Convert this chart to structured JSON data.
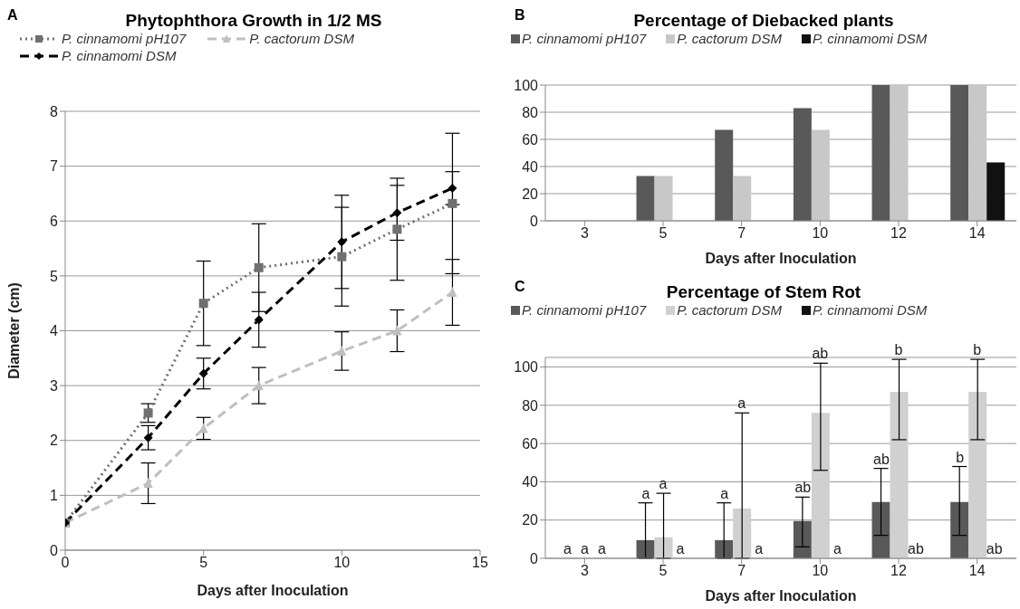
{
  "chart_data": [
    {
      "type": "line",
      "title": "Phytophthora Growth in 1/2 MS",
      "xlabel": "Days after Inoculation",
      "ylabel": "Diameter (cm)",
      "annotations": [
        "A"
      ],
      "x": [
        0,
        3,
        5,
        7,
        10,
        12,
        14
      ],
      "xlim": [
        0,
        15
      ],
      "xticks": [
        0,
        5,
        10,
        15
      ],
      "ylim": [
        0,
        8
      ],
      "yticks": [
        0,
        1,
        2,
        3,
        4,
        5,
        6,
        7,
        8
      ],
      "grid": "y",
      "legend": "top left",
      "series": [
        {
          "name": "P. cinnamomi pH107",
          "color": "#707070",
          "line_style": "dotted",
          "marker": "square",
          "values": [
            0.5,
            2.5,
            4.5,
            5.15,
            5.35,
            5.85,
            6.32
          ],
          "errors": [
            null,
            0.17,
            0.77,
            0.8,
            0.9,
            0.93,
            1.28
          ]
        },
        {
          "name": "P. cactorum DSM",
          "color": "#bfbfbf",
          "line_style": "dashed",
          "marker": "triangle",
          "values": [
            0.5,
            1.22,
            2.22,
            3.0,
            3.63,
            4.0,
            4.7
          ],
          "errors": [
            null,
            0.37,
            0.2,
            0.33,
            0.35,
            0.38,
            0.6
          ]
        },
        {
          "name": "P. cinnamomi DSM",
          "color": "#000000",
          "line_style": "dashed",
          "marker": "diamond",
          "values": [
            0.5,
            2.05,
            3.22,
            4.2,
            5.62,
            6.15,
            6.6
          ],
          "errors": [
            null,
            0.22,
            0.28,
            0.5,
            0.85,
            0.5,
            0.3
          ]
        }
      ]
    },
    {
      "type": "bar",
      "title": "Percentage of Diebacked plants",
      "xlabel": "Days after Inoculation",
      "annotations": [
        "B"
      ],
      "categories": [
        "3",
        "5",
        "7",
        "10",
        "12",
        "14"
      ],
      "ylim": [
        0,
        100
      ],
      "yticks": [
        0,
        20,
        40,
        60,
        80,
        100
      ],
      "grid": "y",
      "legend": "top",
      "series": [
        {
          "name": "P. cinnamomi pH107",
          "color": "#595959",
          "values": [
            0,
            33,
            67,
            83,
            100,
            100
          ]
        },
        {
          "name": "P. cactorum DSM",
          "color": "#c8c8c8",
          "values": [
            0,
            33,
            33,
            67,
            100,
            100
          ]
        },
        {
          "name": "P. cinnamomi DSM",
          "color": "#111111",
          "values": [
            0,
            0,
            0,
            0,
            0,
            43
          ]
        }
      ]
    },
    {
      "type": "bar",
      "title": "Percentage of Stem Rot",
      "xlabel": "Days after Inoculation",
      "annotations": [
        "C",
        {
          "text": "a",
          "x": "3",
          "y": 0
        },
        {
          "text": "a",
          "x": "3",
          "y": 0
        },
        {
          "text": "a",
          "x": "3",
          "y": 0
        },
        {
          "text": "a",
          "x": "5",
          "y": 29
        },
        {
          "text": "a",
          "x": "5",
          "y": 34
        },
        {
          "text": "a",
          "x": "5",
          "y": 0
        },
        {
          "text": "a",
          "x": "7",
          "y": 29
        },
        {
          "text": "a",
          "x": "7",
          "y": 76
        },
        {
          "text": "a",
          "x": "7",
          "y": 0
        },
        "ab",
        {
          "text": "ab",
          "x": "10",
          "y": 102
        },
        {
          "text": "a",
          "x": "10",
          "y": 0
        },
        "ab",
        {
          "text": "b",
          "x": "12",
          "y": 104
        },
        {
          "text": "ab",
          "x": "12",
          "y": 0
        },
        "b",
        {
          "text": "b",
          "x": "14",
          "y": 104
        },
        {
          "text": "ab",
          "x": "14",
          "y": 0
        }
      ],
      "categories": [
        "3",
        "5",
        "7",
        "10",
        "12",
        "14"
      ],
      "ylim": [
        0,
        105
      ],
      "yticks": [
        0,
        20,
        40,
        60,
        80,
        100
      ],
      "grid": "y",
      "legend": "top",
      "series": [
        {
          "name": "P. cinnamomi pH107",
          "color": "#595959",
          "values": [
            0,
            9.5,
            9.5,
            19.5,
            29.5,
            29.5
          ],
          "errors": [
            null,
            [
              0,
              29
            ],
            [
              0,
              29
            ],
            [
              6,
              32
            ],
            [
              12,
              47
            ],
            [
              12,
              48
            ]
          ]
        },
        {
          "name": "P. cactorum DSM",
          "color": "#d0d0d0",
          "values": [
            0,
            11,
            26,
            76,
            87,
            87
          ],
          "errors": [
            null,
            [
              0,
              34
            ],
            [
              0,
              76
            ],
            [
              46,
              102
            ],
            [
              62,
              104
            ],
            [
              62,
              104
            ]
          ]
        },
        {
          "name": "P. cinnamomi DSM",
          "color": "#111111",
          "values": [
            0,
            0,
            0,
            0,
            0,
            0
          ]
        }
      ]
    }
  ]
}
